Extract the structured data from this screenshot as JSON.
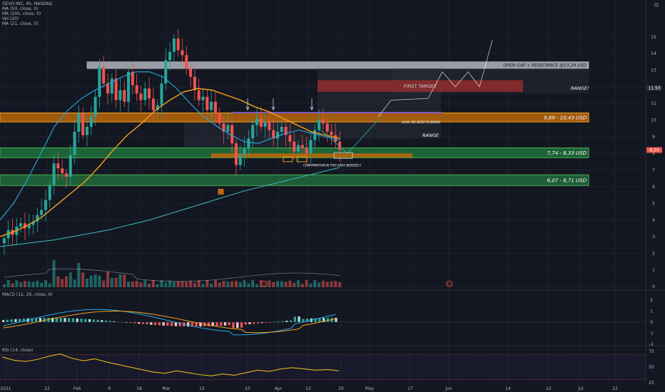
{
  "legend": {
    "symbol": "GEVO INC, 4h, NASDAQ",
    "ma50": "MA (50, close, 0)",
    "ma200": "MA (200, close, 0)",
    "vol": "Vol (20)",
    "ma21": "MA (21, close, 0)"
  },
  "indicators": {
    "macd_title": "MACD (12, 26, close, 9)",
    "rsi_title": "RSI (14, close)"
  },
  "colors": {
    "bg": "#131722",
    "up": "#26a69a",
    "down": "#ef5350",
    "orange": "#f7a21b",
    "blue": "#2ba8e0",
    "teal": "#3dbdbd",
    "green_zone": "#1e6b3a",
    "orange_zone": "#b8660a"
  },
  "chart_data": [
    {
      "type": "candlestick",
      "title": "GEVO INC, 4h, NASDAQ",
      "ylim": [
        0,
        16
      ],
      "y_ticks": [
        "0",
        "1",
        "2",
        "3",
        "4",
        "5",
        "6",
        "7",
        "8",
        "9",
        "10",
        "11",
        "12",
        "13",
        "14",
        "15"
      ],
      "x_ticks": [
        "2021",
        "12",
        "Feb",
        "9",
        "18",
        "Mar",
        "15",
        "23",
        "Apr",
        "12",
        "20",
        "May",
        "17",
        "Jun",
        "14",
        "22",
        "Jul",
        "12"
      ],
      "price_labels": [
        "11.93",
        "8.20"
      ],
      "zones": [
        {
          "label": "OPEN GAP + RESISTANCE @13,29 USD",
          "low": 13.1,
          "high": 13.5
        },
        {
          "label": "FIRST TARGET",
          "low": 11.7,
          "high": 12.4
        },
        {
          "label": "9,89 - 10,43 USD",
          "low": 9.89,
          "high": 10.43
        },
        {
          "label": "7,74 - 8,33 USD",
          "low": 7.74,
          "high": 8.33
        },
        {
          "label": "6,07 - 6,71 USD",
          "low": 6.07,
          "high": 6.71
        }
      ],
      "annotations": [
        "RANGE!",
        "RANGE",
        "LEVEL WE NEED TO BREAK",
        "CONFIRMATION IN THIS AREA NEEDED!!!"
      ],
      "closes": [
        2.9,
        3.4,
        3.1,
        3.6,
        3.8,
        3.5,
        3.7,
        3.9,
        4.3,
        4.6,
        5.2,
        6.1,
        7.4,
        7.1,
        6.8,
        6.6,
        7.9,
        9.3,
        10.4,
        9.1,
        9.6,
        10.2,
        11.4,
        13.2,
        12.2,
        11.6,
        12.5,
        11.2,
        11.8,
        11.1,
        12.9,
        12.1,
        11.6,
        11.2,
        11.9,
        11.3,
        10.6,
        10.9,
        12.2,
        13.6,
        14.1,
        14.9,
        14.2,
        13.9,
        13.1,
        12.6,
        11.8,
        11.2,
        11.4,
        10.6,
        11.1,
        10.4,
        9.8,
        9.3,
        9.7,
        8.6,
        7.3,
        7.9,
        8.3,
        8.9,
        9.7,
        10.1,
        9.6,
        9.9,
        9.4,
        8.9,
        9.3,
        9.6,
        9.1,
        8.7,
        8.1,
        8.5,
        8.3,
        8.0,
        8.8,
        9.4,
        10.0,
        9.8,
        9.3,
        9.1,
        8.7,
        8.2
      ],
      "ma_slow": [
        2.4,
        2.5,
        2.6,
        2.7,
        2.8,
        2.95,
        3.1,
        3.25,
        3.4,
        3.6,
        3.8,
        4.0,
        4.25,
        4.5,
        4.75,
        5.0,
        5.25,
        5.5,
        5.75,
        5.95,
        6.15,
        6.35,
        6.55,
        6.75,
        6.95,
        7.15
      ],
      "ma_mid": [
        3.0,
        3.3,
        3.7,
        4.2,
        4.9,
        5.6,
        6.3,
        7.2,
        8.2,
        9.1,
        9.8,
        10.6,
        11.2,
        11.7,
        11.9,
        11.8,
        11.5,
        11.2,
        10.8,
        10.5,
        10.1,
        9.7,
        9.3,
        9.1,
        8.9
      ],
      "ma_fast": [
        4.0,
        5.0,
        6.4,
        8.0,
        9.6,
        10.6,
        11.3,
        11.8,
        12.2,
        12.6,
        12.9,
        12.9,
        12.6,
        11.9,
        11.0,
        10.2,
        9.6,
        9.1,
        8.7,
        8.6,
        8.9,
        9.2,
        9.4,
        9.2,
        9.0,
        8.8
      ]
    },
    {
      "type": "bar",
      "title": "MACD (12, 26, close, 9)",
      "ylim": [
        -2,
        2
      ],
      "y_ticks": [
        "2",
        "1",
        "0",
        "-1",
        "-2"
      ]
    },
    {
      "type": "line",
      "title": "RSI (14, close)",
      "ylim": [
        25,
        80
      ],
      "y_ticks": [
        "75",
        "50",
        "25"
      ],
      "values": [
        66,
        61,
        59,
        62,
        67,
        71,
        64,
        60,
        63,
        58,
        54,
        50,
        46,
        42,
        40,
        44,
        41,
        38,
        36,
        39,
        37,
        41,
        45,
        43,
        47,
        49,
        47,
        45,
        46,
        44
      ]
    }
  ]
}
